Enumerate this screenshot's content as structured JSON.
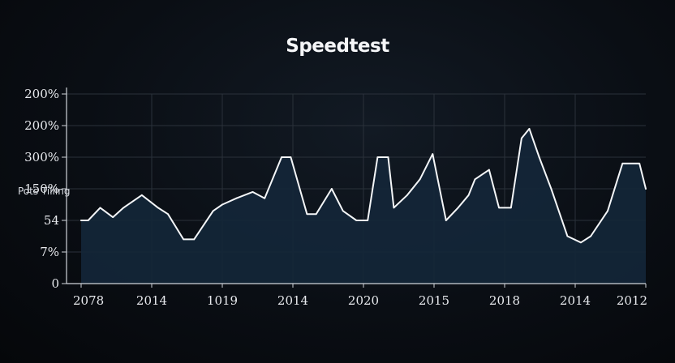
{
  "chart_data": {
    "type": "area",
    "title": "Speedtest",
    "ylabel": "Pots Tilling",
    "xlabel": "",
    "y_ticks": [
      "0",
      "7%",
      "54",
      "150%",
      "300%",
      "200%",
      "200%"
    ],
    "x_ticks": [
      "2078",
      "2014",
      "1019",
      "2014",
      "2020",
      "2015",
      "2018",
      "2014",
      "2012"
    ],
    "ylim": [
      0,
      6
    ],
    "xlim": [
      0,
      8
    ],
    "grid": true,
    "colors": {
      "line": "#f4f6f8",
      "fill": "#142638",
      "grid": "#2a313a"
    },
    "series": [
      {
        "x": [
          0.0,
          0.1,
          0.27,
          0.45,
          0.6,
          0.86,
          1.09,
          1.23,
          1.45,
          1.6,
          1.87,
          2.0,
          2.2,
          2.43,
          2.6,
          2.84,
          2.97,
          3.2,
          3.33,
          3.55,
          3.71,
          3.9,
          4.06,
          4.2,
          4.35,
          4.43,
          4.62,
          4.8,
          4.98,
          5.17,
          5.34,
          5.49,
          5.58,
          5.78,
          5.92,
          6.09,
          6.24,
          6.35,
          6.49,
          6.66,
          6.89,
          7.08,
          7.22,
          7.46,
          7.67,
          7.91,
          8.0
        ],
        "values": [
          2.0,
          2.0,
          2.4,
          2.1,
          2.4,
          2.8,
          2.4,
          2.2,
          1.4,
          1.4,
          2.3,
          2.5,
          2.7,
          2.9,
          2.7,
          4.0,
          4.0,
          2.2,
          2.2,
          3.0,
          2.3,
          2.0,
          2.0,
          4.0,
          4.0,
          2.4,
          2.8,
          3.3,
          4.1,
          2.0,
          2.4,
          2.8,
          3.3,
          3.6,
          2.4,
          2.4,
          4.6,
          4.9,
          4.0,
          3.0,
          1.5,
          1.3,
          1.5,
          2.3,
          3.8,
          3.8,
          3.0
        ]
      }
    ]
  }
}
